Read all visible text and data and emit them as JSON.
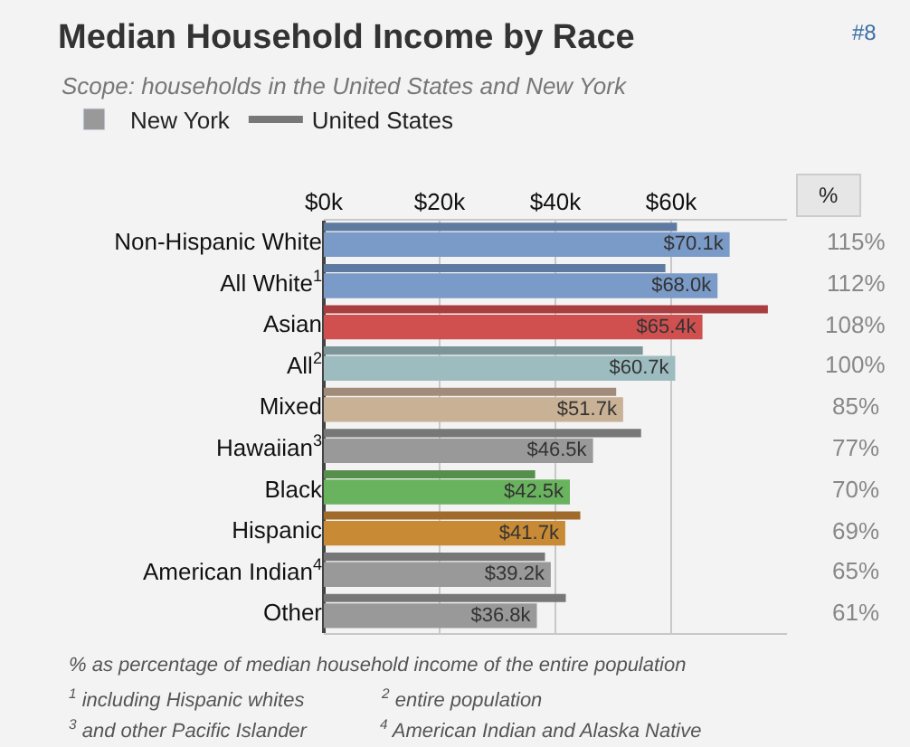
{
  "chart_data": {
    "type": "bar",
    "orientation": "horizontal",
    "title": "Median Household Income by Race",
    "subtitle": "Scope: households in the United States and New York",
    "categories": [
      "Non-Hispanic White",
      "All White$^{1}$",
      "Asian",
      "All$^{2}$",
      "Mixed",
      "Hawaiian$^{3}$",
      "Black",
      "Hispanic",
      "American Indian$^{4}$",
      "Other"
    ],
    "series": [
      {
        "name": "United States",
        "color": "#777777",
        "colors": [
          "#5e7aa0",
          "#5e7aa0",
          "#a83e40",
          "#7b9598",
          "#a08c78",
          "#777777",
          "#558f4b",
          "#a06b2a",
          "#777777",
          "#777777"
        ],
        "values": [
          61.0,
          59.0,
          76.7,
          55.1,
          50.5,
          54.8,
          36.5,
          44.3,
          38.2,
          41.8
        ]
      },
      {
        "name": "New York",
        "color": "#999999",
        "colors": [
          "#7a9ac8",
          "#7a9ac8",
          "#d05050",
          "#9dbcc0",
          "#c9b196",
          "#999999",
          "#6ab35e",
          "#c88a35",
          "#999999",
          "#999999"
        ],
        "values": [
          70.1,
          68.0,
          65.4,
          60.7,
          51.7,
          46.5,
          42.5,
          41.7,
          39.2,
          36.8
        ],
        "value_labels": [
          "$70.1k",
          "$68.0k",
          "$65.4k",
          "$60.7k",
          "$51.7k",
          "$46.5k",
          "$42.5k",
          "$41.7k",
          "$39.2k",
          "$36.8k"
        ]
      }
    ],
    "xlim": [
      0,
      80
    ],
    "xticks": [
      {
        "value": 0,
        "label": "$0k"
      },
      {
        "value": 20,
        "label": "$20k"
      },
      {
        "value": 40,
        "label": "$40k"
      },
      {
        "value": 60,
        "label": "$60k"
      }
    ],
    "grid": "x",
    "legend": "top left",
    "annotations": [
      "#8",
      "%",
      "115%",
      "112%",
      "108%",
      "100%",
      "85%",
      "77%",
      "70%",
      "69%",
      "65%",
      "61%",
      "% as percentage of median household income of the entire population",
      "$^{1}$ including Hispanic whites",
      "$^{2}$ entire population",
      "$^{3}$ and other Pacific Islander",
      "$^{4}$ American Indian and Alaska Native"
    ]
  }
}
